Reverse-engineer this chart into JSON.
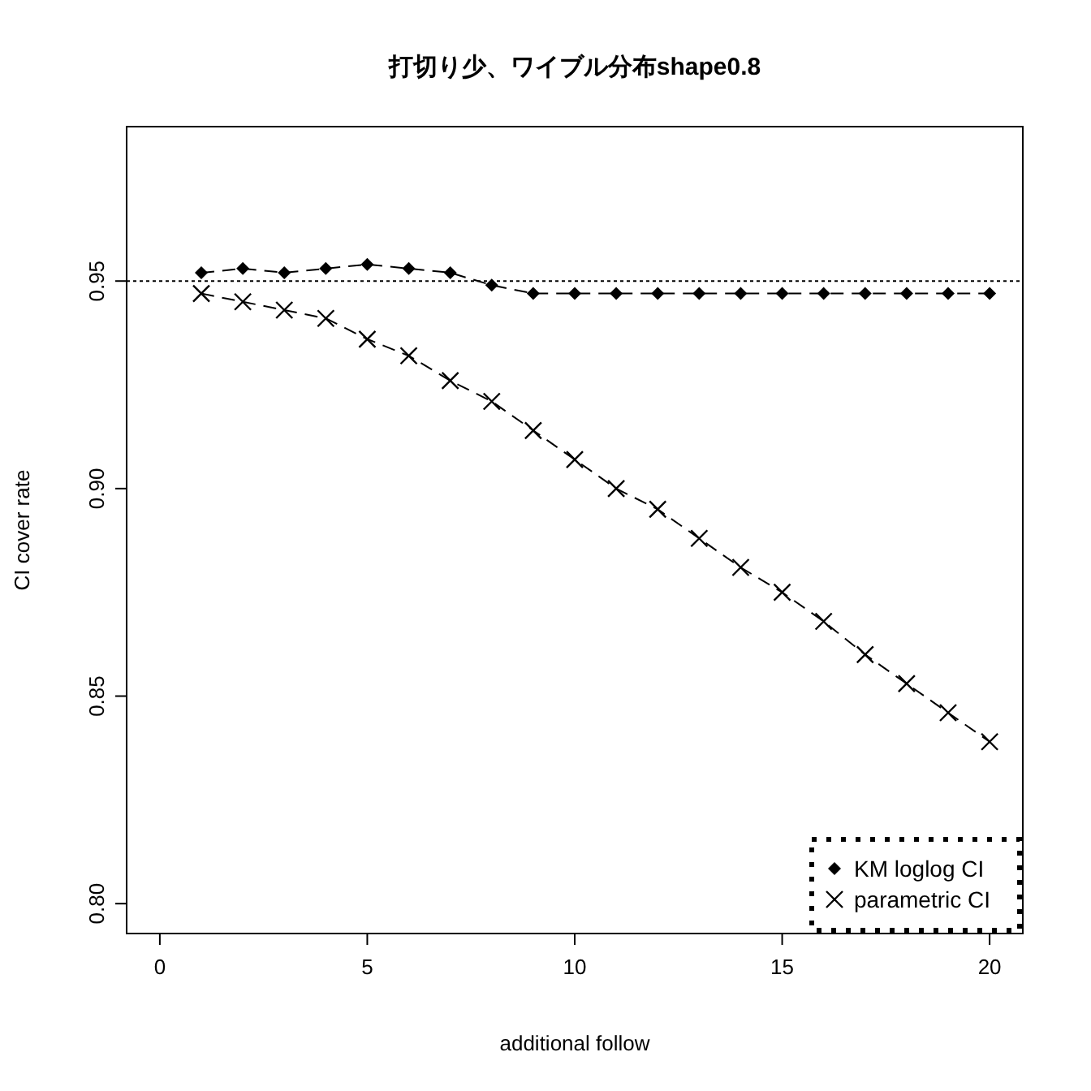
{
  "chart_data": {
    "type": "line",
    "title": "打切り少、ワイブル分布shape0.8",
    "xlabel": "additional follow",
    "ylabel": "CI cover rate",
    "x": [
      1,
      2,
      3,
      4,
      5,
      6,
      7,
      8,
      9,
      10,
      11,
      12,
      13,
      14,
      15,
      16,
      17,
      18,
      19,
      20
    ],
    "series": [
      {
        "name": "KM loglog CI",
        "color": "#000000",
        "marker": "diamond",
        "values": [
          0.952,
          0.953,
          0.952,
          0.953,
          0.954,
          0.953,
          0.952,
          0.949,
          0.947,
          0.947,
          0.947,
          0.947,
          0.947,
          0.947,
          0.947,
          0.947,
          0.947,
          0.947,
          0.947,
          0.947
        ]
      },
      {
        "name": "parametric CI",
        "color": "#000000",
        "marker": "cross",
        "values": [
          0.947,
          0.945,
          0.943,
          0.941,
          0.936,
          0.932,
          0.926,
          0.921,
          0.914,
          0.907,
          0.9,
          0.895,
          0.888,
          0.881,
          0.875,
          0.868,
          0.86,
          0.853,
          0.846,
          0.839
        ]
      }
    ],
    "line_style": "dashed",
    "xlim": [
      -0.8,
      20.8
    ],
    "xticks": [
      0,
      5,
      10,
      15,
      20
    ],
    "ylim": [
      0.7928,
      0.9872
    ],
    "yticks": [
      {
        "value": 0.8,
        "label": "0.80"
      },
      {
        "value": 0.85,
        "label": "0.85"
      },
      {
        "value": 0.9,
        "label": "0.90"
      },
      {
        "value": 0.95,
        "label": "0.95"
      }
    ],
    "ref_lines": [
      {
        "axis": "y",
        "value": 0.95,
        "line_style": "dotted",
        "color": "#000000"
      }
    ],
    "legend": "bottom right",
    "grid": false
  }
}
